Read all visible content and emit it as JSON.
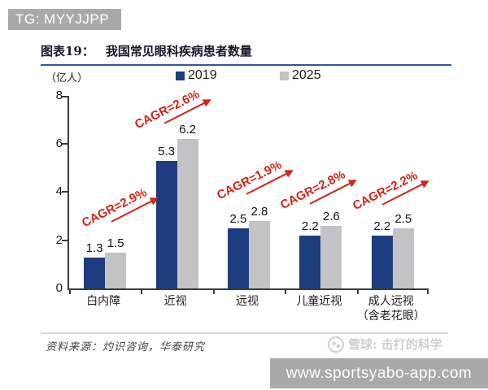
{
  "banner": {
    "text": "TG: MYYJJPP"
  },
  "figure": {
    "title_prefix": "图表19：",
    "title_text": "我国常见眼科疾病患者数量",
    "unit_label": "（亿人）",
    "source": "资料来源：灼识咨询，华泰研究"
  },
  "watermarks": {
    "xueqiu": "雪球: 击打的科学",
    "url": "www.sportsyabo-app.com"
  },
  "chart_data": {
    "type": "bar",
    "title": "我国常见眼科疾病患者数量",
    "unit": "亿人",
    "categories": [
      "白内障",
      "近视",
      "远视",
      "儿童近视",
      "成人远视\n（含老花眼）"
    ],
    "series": [
      {
        "name": "2019",
        "color": "#1d3d7f",
        "values": [
          1.3,
          5.3,
          2.5,
          2.2,
          2.2
        ]
      },
      {
        "name": "2025",
        "color": "#c3c3c5",
        "values": [
          1.5,
          6.2,
          2.8,
          2.6,
          2.5
        ]
      }
    ],
    "annotations": [
      "CAGR=2.9%",
      "CAGR=2.6%",
      "CAGR=1.9%",
      "CAGR=2.8%",
      "CAGR=2.2%"
    ],
    "annotation_color": "#d42318",
    "ylim": [
      0,
      8
    ],
    "yticks": [
      8,
      6,
      4,
      2,
      0
    ],
    "grid": false,
    "legend_position": "top"
  }
}
